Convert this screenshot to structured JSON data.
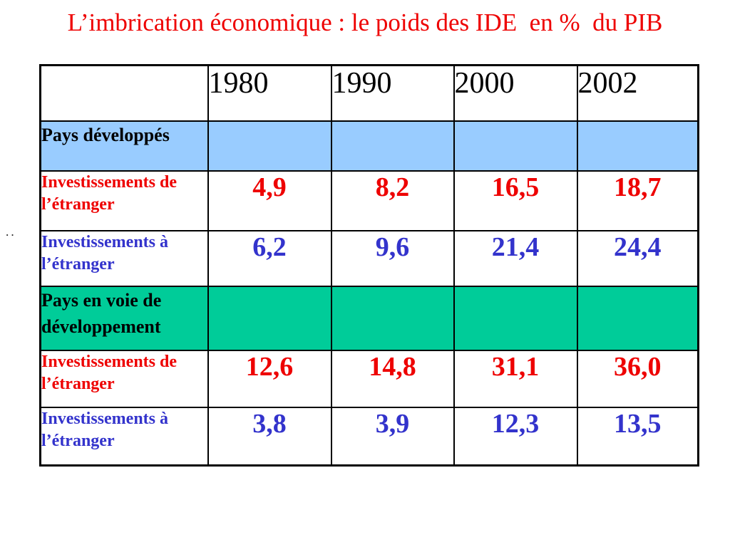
{
  "slide": {
    "title": "L’imbrication économique : le poids des IDE  en %  du PIB",
    "artifact_marks": "··"
  },
  "colors": {
    "title-red": "#ee0000",
    "value-red": "#ee0000",
    "value-blue": "#3333cc",
    "section-blue-bg": "#99ccff",
    "section-green-bg": "#00cc99",
    "border-black": "#000000"
  },
  "table": {
    "columns": [
      "",
      "1980",
      "1990",
      "2000",
      "2002"
    ],
    "rows": [
      {
        "type": "section",
        "style": "blue-bg",
        "label": "Pays développés",
        "values": [
          "",
          "",
          "",
          ""
        ]
      },
      {
        "type": "data",
        "style": "red",
        "label": "Investissements de l’étranger",
        "values": [
          "4,9",
          "8,2",
          "16,5",
          "18,7"
        ]
      },
      {
        "type": "data",
        "style": "blue",
        "label": "Investissements à l’étranger",
        "values": [
          "6,2",
          "9,6",
          "21,4",
          "24,4"
        ]
      },
      {
        "type": "section",
        "style": "green-bg",
        "label": "Pays en voie de développement",
        "values": [
          "",
          "",
          "",
          ""
        ]
      },
      {
        "type": "data",
        "style": "red",
        "label": "Investissements de l’étranger",
        "values": [
          "12,6",
          "14,8",
          "31,1",
          "36,0"
        ]
      },
      {
        "type": "data",
        "style": "blue",
        "label": "Investissements à l’étranger",
        "values": [
          "3,8",
          "3,9",
          "12,3",
          "13,5"
        ]
      }
    ]
  }
}
